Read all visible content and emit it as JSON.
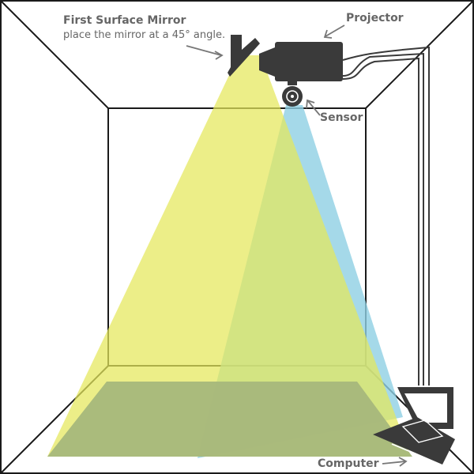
{
  "labels": {
    "mirror_title": "First Surface Mirror",
    "mirror_note": "place the mirror at a 45° angle.",
    "projector": "Projector",
    "sensor": "Sensor",
    "computer": "Computer"
  },
  "colors": {
    "room_lines": "#1a1a1a",
    "projection_beam": "#e6ea6a",
    "sensor_beam": "#8ed0e4",
    "floor": "#a7b77b",
    "device": "#3a3a3a",
    "label_text": "#666666"
  },
  "icons": [
    "mirror-icon",
    "projector-icon",
    "sensor-icon",
    "laptop-icon",
    "arrow-icon"
  ]
}
